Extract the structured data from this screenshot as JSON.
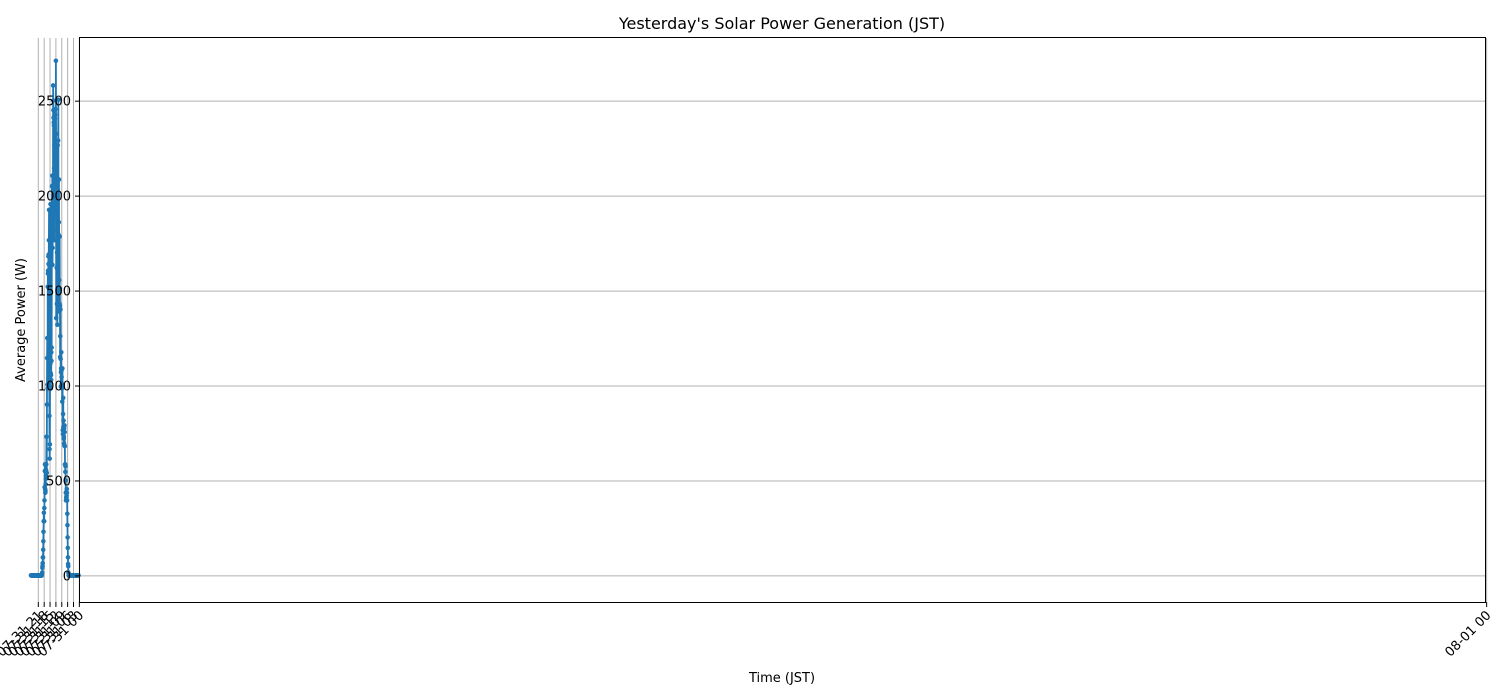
{
  "chart_data": {
    "type": "line",
    "title": "Yesterday's Solar Power Generation (JST)",
    "xlabel": "Time (JST)",
    "ylabel": "Average Power (W)",
    "x_ticks": [
      "07-31 00",
      "07-31 03",
      "07-31 06",
      "07-31 09",
      "07-31 12",
      "07-31 15",
      "07-31 18",
      "07-31 21",
      "08-01 00"
    ],
    "y_ticks": [
      0,
      500,
      1000,
      1500,
      2000,
      2500
    ],
    "xlim": [
      "07-30 23:25",
      "08-01 00:35"
    ],
    "ylim": [
      -140,
      2830
    ],
    "grid": true,
    "marker": "circle",
    "color": "#1f77b4",
    "series": [
      {
        "x_start": "07-31 00:10",
        "x_step_minutes": 5,
        "values": [
          0,
          0,
          0,
          0,
          0,
          0,
          0,
          0,
          0,
          0,
          0,
          0,
          0,
          0,
          0,
          0,
          0,
          0,
          0,
          0,
          0,
          0,
          0,
          0,
          0,
          0,
          0,
          0,
          0,
          0,
          0,
          0,
          0,
          0,
          0,
          0,
          0,
          0,
          0,
          0,
          0,
          0,
          0,
          0,
          0,
          0,
          0,
          0,
          0,
          0,
          0,
          0,
          0,
          0,
          0,
          0,
          0,
          0,
          0,
          0,
          0,
          0,
          15,
          48,
          60,
          95,
          145,
          200,
          265,
          325,
          395,
          435,
          455,
          420,
          410,
          440,
          410,
          395,
          435,
          500,
          575,
          545,
          585,
          585,
          680,
          755,
          790,
          685,
          775,
          695,
          730,
          720,
          815,
          780,
          935,
          850,
          745,
          765,
          1000,
          1090,
          915,
          985,
          1010,
          1085,
          1045,
          1080,
          1175,
          1090,
          1070,
          995,
          1140,
          1400,
          1260,
          1150,
          1420,
          1510,
          1785,
          1430,
          1510,
          1555,
          2085,
          1860,
          1550,
          1795,
          2505,
          2290,
          1775,
          1390,
          2265,
          1820,
          1320,
          1820,
          1700,
          1430,
          1620,
          1895,
          2160,
          1355,
          2325,
          2710,
          2000,
          1920,
          2075,
          2455,
          2425,
          2405,
          2435,
          2370,
          2265,
          1765,
          2145,
          2370,
          2385,
          2410,
          2450,
          2500,
          2580,
          1895,
          1930,
          1725,
          1635,
          2105,
          1770,
          2050,
          1895,
          1200,
          1130,
          1175,
          1030,
          1055,
          985,
          1065,
          1955,
          1115,
          1200,
          995,
          690,
          615,
          665,
          840,
          1485,
          1925,
          1765,
          1690,
          1640,
          1680,
          1590,
          1605,
          1590,
          1520,
          985,
          1005,
          1250,
          1145,
          900,
          540,
          540,
          730,
          585,
          555,
          525,
          510,
          480,
          445,
          435,
          455,
          585,
          550,
          465,
          395,
          355,
          285,
          285,
          330,
          285,
          230,
          180,
          135,
          95,
          95,
          65,
          50,
          40,
          15,
          10,
          0,
          0,
          0,
          0,
          0,
          0,
          0,
          0,
          0,
          0,
          0,
          0,
          0,
          0,
          0,
          0,
          0,
          0,
          0,
          0,
          0,
          0,
          0,
          0,
          0,
          0,
          0,
          0,
          0,
          0,
          0,
          0,
          0,
          0,
          0,
          0,
          0,
          0,
          0,
          0,
          0,
          0,
          0,
          0,
          0,
          0,
          0,
          0,
          0,
          0,
          0,
          0,
          0,
          0,
          0,
          0,
          0,
          0,
          0,
          0,
          0,
          0,
          0,
          0,
          0,
          0,
          0,
          0
        ]
      }
    ]
  }
}
